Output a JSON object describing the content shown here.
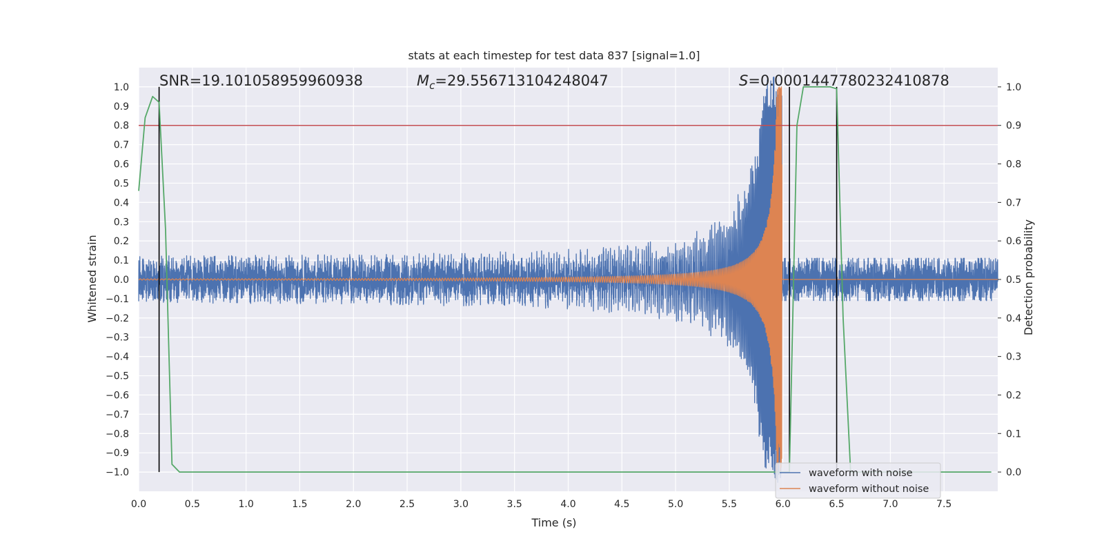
{
  "chart_data": {
    "type": "line",
    "title": "stats at each timestep for test data 837 [signal=1.0]",
    "xlabel": "Time (s)",
    "ylabel_left": "Whitened strain",
    "ylabel_right": "Detection probability",
    "xlim": [
      0.0,
      8.0
    ],
    "ylim_left": [
      -1.1,
      1.1
    ],
    "ylim_right": [
      -0.05,
      1.05
    ],
    "xticks": [
      "0.0",
      "0.5",
      "1.0",
      "1.5",
      "2.0",
      "2.5",
      "3.0",
      "3.5",
      "4.0",
      "4.5",
      "5.0",
      "5.5",
      "6.0",
      "6.5",
      "7.0",
      "7.5"
    ],
    "yticks_left": [
      "1.0",
      "0.9",
      "0.8",
      "0.7",
      "0.6",
      "0.5",
      "0.4",
      "0.3",
      "0.2",
      "0.1",
      "0.0",
      "−0.1",
      "−0.2",
      "−0.3",
      "−0.4",
      "−0.5",
      "−0.6",
      "−0.7",
      "−0.8",
      "−0.9",
      "−1.0"
    ],
    "yticks_right": [
      "1.0",
      "0.9",
      "0.8",
      "0.7",
      "0.6",
      "0.5",
      "0.4",
      "0.3",
      "0.2",
      "0.1",
      "0.0"
    ],
    "grid": true,
    "legend_position": "bottom-right",
    "annotations": {
      "snr": "SNR=19.101058959960938",
      "mc_symbol": "M",
      "mc_sub": "c",
      "mc_value": "=29.556713104248047",
      "s_symbol": "S",
      "s_value": "=0.0001447780232410878"
    },
    "series": [
      {
        "name": "waveform with noise",
        "color": "#4c72b0",
        "noise_amplitude": 0.11,
        "chirp_peak_amplitude": 1.0,
        "merger_time": 5.99
      },
      {
        "name": "waveform without noise",
        "color": "#dd8452",
        "chirp_start_amplitude": 0.003,
        "chirp_peak_amplitude": 1.0,
        "merger_time": 5.99
      },
      {
        "name": "detection probability",
        "color": "#55a868",
        "axis": "right",
        "x": [
          0.0,
          0.06,
          0.13,
          0.19,
          0.25,
          0.31,
          0.38,
          6.0,
          6.06,
          6.13,
          6.19,
          6.25,
          6.31,
          6.38,
          6.44,
          6.5,
          6.56,
          6.63,
          6.69,
          7.94
        ],
        "y": [
          0.73,
          0.92,
          0.975,
          0.96,
          0.63,
          0.02,
          0.0,
          0.0,
          0.0,
          0.9,
          1.0,
          1.0,
          1.0,
          1.0,
          1.0,
          0.995,
          0.4,
          0.0,
          0.0,
          0.0
        ]
      }
    ],
    "threshold": {
      "value": 0.9,
      "axis": "right",
      "color": "#c44e52"
    },
    "vertical_lines": {
      "x": [
        0.19,
        6.06,
        6.5
      ],
      "y_range": [
        0.0,
        1.0
      ],
      "axis": "right",
      "color": "#000000"
    }
  }
}
